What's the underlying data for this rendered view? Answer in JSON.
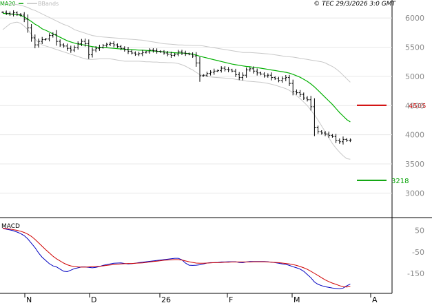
{
  "header": {
    "legend": [
      {
        "label": "MA20",
        "color": "#00a000"
      },
      {
        "label": "BBands",
        "color": "#c0c0c0"
      }
    ],
    "copyright": "© TEC 29/3/2026 3:0 GMT"
  },
  "colors": {
    "price": "#000000",
    "ma20": "#00b000",
    "bbands": "#c8c8c8",
    "resistance": "#d00000",
    "support": "#00a000",
    "macd": "#0000c0",
    "signal": "#d00000",
    "grid": "#e8e8e8"
  },
  "chart_data": [
    {
      "type": "line",
      "panel": "price",
      "x_ticks": [
        "N",
        "D",
        "26",
        "F",
        "M",
        "A"
      ],
      "y_ticks": [
        "6000",
        "5500",
        "5000",
        "4500",
        "4000",
        "3500",
        "3000"
      ],
      "ylim": [
        2650,
        6250
      ],
      "levels": [
        {
          "name": "resistance",
          "value": 4505,
          "label": "4505"
        },
        {
          "name": "support",
          "value": 3218,
          "label": "3218"
        }
      ],
      "series": [
        {
          "name": "price",
          "values": [
            6100,
            6080,
            6070,
            6090,
            6060,
            6050,
            5980,
            5830,
            5660,
            5540,
            5600,
            5630,
            5640,
            5700,
            5720,
            5600,
            5540,
            5520,
            5480,
            5450,
            5500,
            5560,
            5600,
            5560,
            5370,
            5450,
            5480,
            5500,
            5530,
            5550,
            5560,
            5540,
            5510,
            5480,
            5460,
            5430,
            5400,
            5380,
            5390,
            5410,
            5420,
            5450,
            5440,
            5430,
            5420,
            5400,
            5380,
            5360,
            5380,
            5420,
            5400,
            5390,
            5380,
            5350,
            5230,
            5010,
            5020,
            5050,
            5070,
            5090,
            5100,
            5140,
            5120,
            5110,
            5090,
            5030,
            4980,
            5020,
            5110,
            5130,
            5090,
            5060,
            5040,
            5010,
            5020,
            4980,
            4960,
            4930,
            4960,
            4980,
            4880,
            4740,
            4720,
            4690,
            4630,
            4600,
            4480,
            4120,
            4050,
            4030,
            4010,
            3990,
            3970,
            3900,
            3880,
            3920,
            3900,
            3910
          ]
        },
        {
          "name": "MA20",
          "values": [
            6080,
            6075,
            6070,
            6065,
            6060,
            6045,
            6020,
            5980,
            5940,
            5895,
            5860,
            5815,
            5790,
            5760,
            5730,
            5700,
            5670,
            5640,
            5610,
            5590,
            5570,
            5555,
            5545,
            5535,
            5520,
            5510,
            5500,
            5495,
            5495,
            5490,
            5485,
            5480,
            5475,
            5470,
            5465,
            5460,
            5458,
            5455,
            5450,
            5448,
            5445,
            5440,
            5435,
            5430,
            5425,
            5420,
            5415,
            5410,
            5405,
            5400,
            5400,
            5395,
            5390,
            5380,
            5365,
            5345,
            5330,
            5315,
            5300,
            5285,
            5270,
            5255,
            5240,
            5225,
            5210,
            5200,
            5190,
            5180,
            5170,
            5165,
            5155,
            5150,
            5140,
            5130,
            5120,
            5110,
            5100,
            5090,
            5080,
            5070,
            5055,
            5035,
            5010,
            4985,
            4950,
            4915,
            4870,
            4820,
            4760,
            4700,
            4640,
            4580,
            4520,
            4450,
            4380,
            4320,
            4260,
            4220
          ]
        },
        {
          "name": "BBands upper",
          "values": [
            6250,
            6245,
            6240,
            6235,
            6230,
            6220,
            6200,
            6180,
            6150,
            6130,
            6100,
            6070,
            6040,
            6010,
            5980,
            5950,
            5920,
            5890,
            5870,
            5840,
            5800,
            5780,
            5760,
            5740,
            5720,
            5700,
            5690,
            5680,
            5675,
            5670,
            5665,
            5660,
            5655,
            5650,
            5645,
            5640,
            5635,
            5630,
            5625,
            5620,
            5610,
            5600,
            5590,
            5580,
            5570,
            5560,
            5555,
            5550,
            5545,
            5540,
            5540,
            5535,
            5535,
            5530,
            5530,
            5530,
            5520,
            5510,
            5500,
            5490,
            5480,
            5470,
            5460,
            5450,
            5440,
            5430,
            5420,
            5410,
            5410,
            5410,
            5405,
            5400,
            5395,
            5390,
            5385,
            5380,
            5370,
            5360,
            5350,
            5340,
            5335,
            5330,
            5320,
            5310,
            5300,
            5290,
            5280,
            5270,
            5260,
            5250,
            5230,
            5200,
            5170,
            5130,
            5080,
            5020,
            4960,
            4900
          ]
        },
        {
          "name": "BBands lower",
          "values": [
            5800,
            5850,
            5900,
            5920,
            5930,
            5910,
            5860,
            5800,
            5720,
            5640,
            5580,
            5540,
            5520,
            5500,
            5480,
            5460,
            5440,
            5420,
            5400,
            5380,
            5360,
            5340,
            5320,
            5300,
            5290,
            5290,
            5295,
            5300,
            5300,
            5300,
            5300,
            5290,
            5280,
            5270,
            5260,
            5260,
            5260,
            5260,
            5260,
            5255,
            5250,
            5250,
            5245,
            5245,
            5240,
            5240,
            5235,
            5235,
            5230,
            5220,
            5200,
            5175,
            5140,
            5110,
            5070,
            5030,
            5010,
            4995,
            4990,
            4985,
            4980,
            4975,
            4970,
            4965,
            4960,
            4950,
            4940,
            4930,
            4920,
            4915,
            4910,
            4905,
            4900,
            4890,
            4880,
            4865,
            4850,
            4830,
            4810,
            4790,
            4760,
            4720,
            4670,
            4620,
            4560,
            4500,
            4420,
            4340,
            4250,
            4150,
            4050,
            3950,
            3850,
            3770,
            3700,
            3640,
            3590,
            3580
          ]
        }
      ]
    },
    {
      "type": "line",
      "panel": "MACD",
      "title": "MACD",
      "y_ticks": [
        "50",
        "-50",
        "-150"
      ],
      "ylim": [
        -230,
        90
      ],
      "series": [
        {
          "name": "MACD",
          "values": [
            60,
            55,
            52,
            48,
            42,
            35,
            25,
            10,
            -10,
            -30,
            -55,
            -75,
            -90,
            -105,
            -115,
            -120,
            -130,
            -140,
            -142,
            -135,
            -128,
            -124,
            -120,
            -120,
            -122,
            -124,
            -122,
            -118,
            -113,
            -109,
            -106,
            -103,
            -102,
            -101,
            -104,
            -106,
            -105,
            -103,
            -100,
            -98,
            -96,
            -94,
            -92,
            -90,
            -88,
            -86,
            -84,
            -82,
            -80,
            -80,
            -87,
            -102,
            -112,
            -113,
            -112,
            -110,
            -106,
            -102,
            -100,
            -100,
            -99,
            -97,
            -97,
            -96,
            -96,
            -96,
            -99,
            -100,
            -97,
            -95,
            -95,
            -95,
            -95,
            -95,
            -96,
            -98,
            -100,
            -103,
            -106,
            -108,
            -113,
            -119,
            -124,
            -130,
            -140,
            -155,
            -170,
            -190,
            -201,
            -207,
            -212,
            -215,
            -218,
            -220,
            -222,
            -218,
            -208,
            -200
          ]
        },
        {
          "name": "signal",
          "values": [
            60,
            58,
            56,
            53,
            50,
            46,
            40,
            32,
            22,
            8,
            -8,
            -24,
            -40,
            -55,
            -70,
            -82,
            -92,
            -102,
            -110,
            -115,
            -118,
            -120,
            -121,
            -121,
            -120,
            -119,
            -118,
            -117,
            -115,
            -113,
            -111,
            -109,
            -107,
            -106,
            -105,
            -104,
            -104,
            -103,
            -102,
            -101,
            -99,
            -97,
            -95,
            -93,
            -91,
            -89,
            -88,
            -87,
            -86,
            -86,
            -88,
            -92,
            -96,
            -99,
            -102,
            -103,
            -103,
            -102,
            -101,
            -100,
            -100,
            -99,
            -98,
            -98,
            -97,
            -97,
            -97,
            -97,
            -97,
            -97,
            -96,
            -96,
            -96,
            -96,
            -97,
            -98,
            -99,
            -100,
            -102,
            -104,
            -106,
            -109,
            -113,
            -118,
            -124,
            -131,
            -140,
            -150,
            -160,
            -170,
            -180,
            -188,
            -195,
            -201,
            -207,
            -212,
            -213,
            -211
          ]
        }
      ]
    }
  ]
}
